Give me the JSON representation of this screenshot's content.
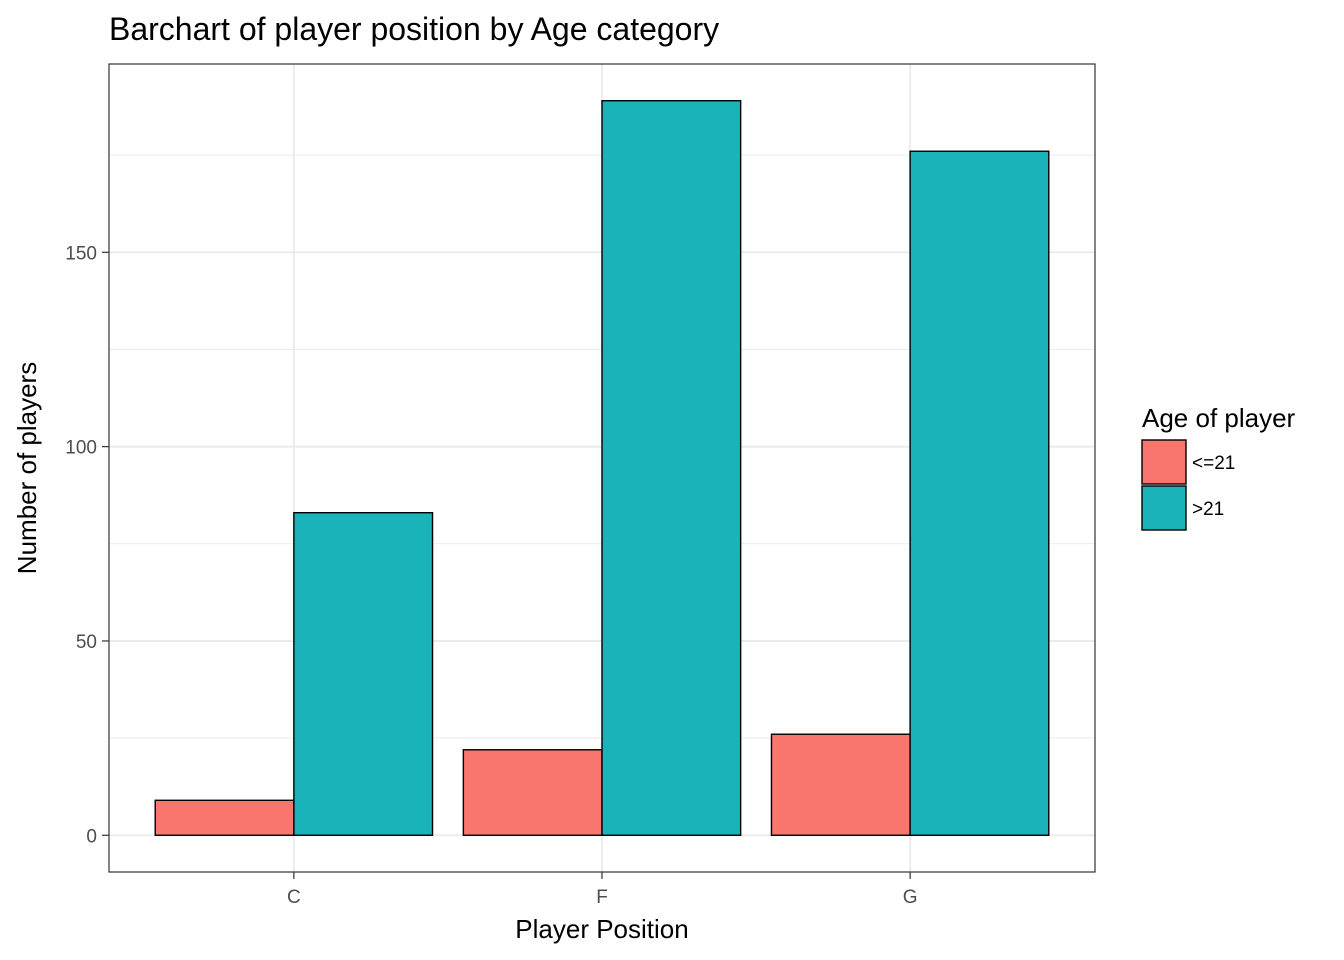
{
  "chart_data": {
    "type": "bar",
    "title": "Barchart of player position by Age category",
    "xlabel": "Player Position",
    "ylabel": "Number of players",
    "categories": [
      "C",
      "F",
      "G"
    ],
    "series": [
      {
        "name": "<=21",
        "color": "#F8766D",
        "values": [
          9,
          22,
          26
        ]
      },
      {
        "name": ">21",
        "color": "#00BFC4",
        "values": [
          83,
          189,
          176
        ]
      }
    ],
    "ylim": [
      -9.45,
      198.45
    ],
    "yticks": [
      0,
      50,
      100,
      150
    ],
    "grid": true,
    "legend": {
      "title": "Age of player",
      "position": "right"
    }
  },
  "colors": {
    "series_fill_1": "#F8766D",
    "series_fill_2": "#1AB3B9",
    "grid": "#EBEBEB",
    "panel_border": "#333333"
  }
}
